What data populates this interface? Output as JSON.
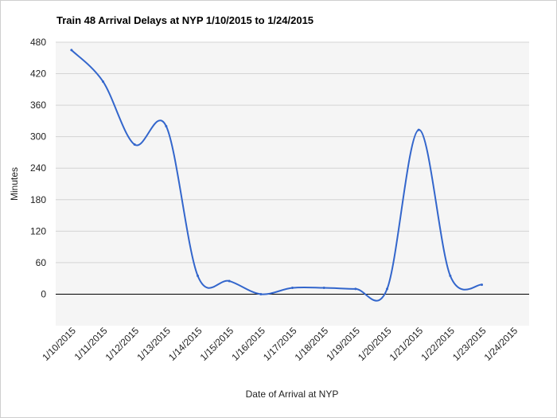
{
  "chart_data": {
    "type": "line",
    "title": "Train 48 Arrival Delays at NYP 1/10/2015 to 1/24/2015",
    "xlabel": "Date of Arrival at NYP",
    "ylabel": "Minutes",
    "x": [
      "1/10/2015",
      "1/11/2015",
      "1/12/2015",
      "1/13/2015",
      "1/14/2015",
      "1/15/2015",
      "1/16/2015",
      "1/17/2015",
      "1/18/2015",
      "1/19/2015",
      "1/20/2015",
      "1/21/2015",
      "1/22/2015",
      "1/23/2015",
      "1/24/2015"
    ],
    "series": [
      {
        "values": [
          465,
          405,
          285,
          320,
          35,
          25,
          0,
          12,
          12,
          10,
          10,
          313,
          35,
          18,
          null
        ]
      }
    ],
    "yticks": [
      0,
      60,
      120,
      180,
      240,
      300,
      360,
      420,
      480
    ],
    "ylim": [
      -60,
      480
    ],
    "grid": true,
    "line_color": "#3366cc",
    "plot_background": "#f5f5f5",
    "grid_color": "#d4d4d4",
    "zero_line_color": "#000000"
  }
}
